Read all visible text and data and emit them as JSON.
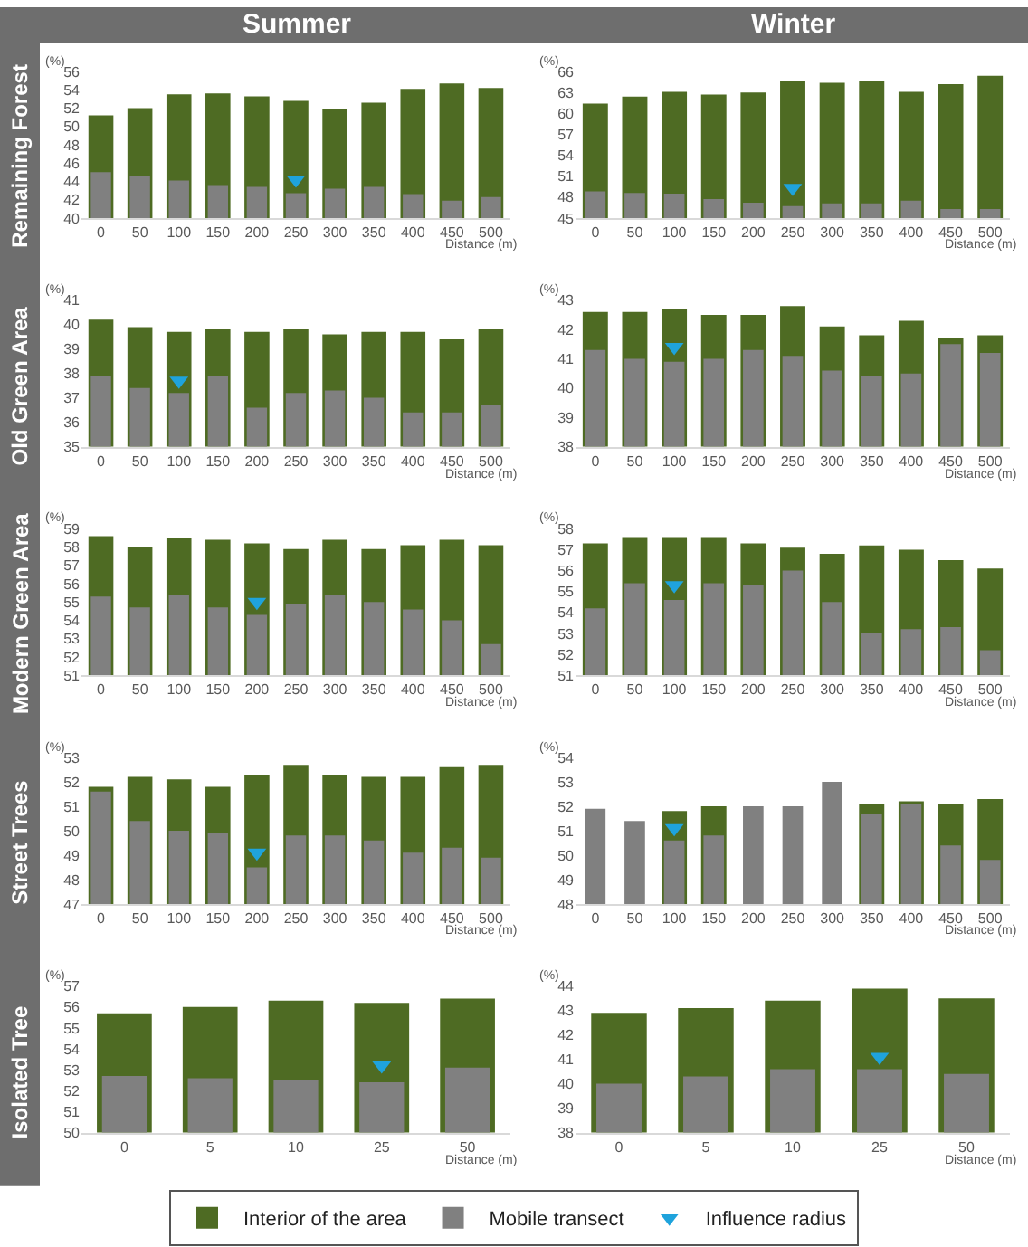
{
  "chart_data": [
    {
      "type": "bar",
      "legend": "bottom",
      "title": "Summer",
      "ylabel": "(%)",
      "xlabel": "Distance (m)",
      "annotations": [
        "Remaining Forest"
      ],
      "categories": [
        "0",
        "50",
        "100",
        "150",
        "200",
        "250",
        "300",
        "350",
        "400",
        "450",
        "500"
      ],
      "ylim": [
        40,
        56
      ],
      "yticks": [
        40,
        42,
        44,
        46,
        48,
        50,
        52,
        54,
        56
      ],
      "series": [
        {
          "name": "Interior of the area",
          "color": "#4e6b23",
          "values": [
            51.2,
            52.0,
            53.5,
            53.6,
            53.3,
            52.8,
            51.9,
            52.6,
            54.1,
            54.7,
            54.2
          ]
        },
        {
          "name": "Mobile transect",
          "color": "#808080",
          "values": [
            45.0,
            44.6,
            44.1,
            43.6,
            43.4,
            42.7,
            43.2,
            43.4,
            42.6,
            41.9,
            42.3
          ]
        },
        {
          "name": "Influence radius",
          "type": "scatter",
          "marker": "triangle",
          "color": "#1fa3dc",
          "x": [
            "250"
          ],
          "values": [
            44.2
          ]
        }
      ]
    },
    {
      "type": "bar",
      "title": "Winter",
      "ylabel": "(%)",
      "xlabel": "Distance (m)",
      "categories": [
        "0",
        "50",
        "100",
        "150",
        "200",
        "250",
        "300",
        "350",
        "400",
        "450",
        "500"
      ],
      "ylim": [
        45,
        66
      ],
      "yticks": [
        45,
        48,
        51,
        54,
        57,
        60,
        63,
        66
      ],
      "series": [
        {
          "color": "#4e6b23",
          "values": [
            61.4,
            62.4,
            63.1,
            62.7,
            63.0,
            64.6,
            64.4,
            64.7,
            63.1,
            64.2,
            65.4
          ]
        },
        {
          "color": "#808080",
          "values": [
            48.8,
            48.6,
            48.5,
            47.7,
            47.2,
            46.7,
            47.1,
            47.1,
            47.5,
            46.3,
            46.3
          ]
        },
        {
          "type": "scatter",
          "marker": "triangle",
          "color": "#1fa3dc",
          "x": [
            "250"
          ],
          "values": [
            49.3
          ]
        }
      ]
    },
    {
      "type": "bar",
      "ylabel": "(%)",
      "xlabel": "Distance (m)",
      "annotations": [
        "Old Green Area"
      ],
      "categories": [
        "0",
        "50",
        "100",
        "150",
        "200",
        "250",
        "300",
        "350",
        "400",
        "450",
        "500"
      ],
      "ylim": [
        35,
        41
      ],
      "yticks": [
        35,
        36,
        37,
        38,
        39,
        40,
        41
      ],
      "series": [
        {
          "color": "#4e6b23",
          "values": [
            40.2,
            39.9,
            39.7,
            39.8,
            39.7,
            39.8,
            39.6,
            39.7,
            39.7,
            39.4,
            39.8
          ]
        },
        {
          "color": "#808080",
          "values": [
            37.9,
            37.4,
            37.2,
            37.9,
            36.6,
            37.2,
            37.3,
            37.0,
            36.4,
            36.4,
            36.7
          ]
        },
        {
          "type": "scatter",
          "marker": "triangle",
          "color": "#1fa3dc",
          "x": [
            "100"
          ],
          "values": [
            37.7
          ]
        }
      ]
    },
    {
      "type": "bar",
      "ylabel": "(%)",
      "xlabel": "Distance (m)",
      "categories": [
        "0",
        "50",
        "100",
        "150",
        "200",
        "250",
        "300",
        "350",
        "400",
        "450",
        "500"
      ],
      "ylim": [
        38,
        43
      ],
      "yticks": [
        38,
        39,
        40,
        41,
        42,
        43
      ],
      "series": [
        {
          "color": "#4e6b23",
          "values": [
            42.6,
            42.6,
            42.7,
            42.5,
            42.5,
            42.8,
            42.1,
            41.8,
            42.3,
            41.7,
            41.8
          ]
        },
        {
          "color": "#808080",
          "values": [
            41.3,
            41.0,
            40.9,
            41.0,
            41.3,
            41.1,
            40.6,
            40.4,
            40.5,
            41.5,
            41.2
          ]
        },
        {
          "type": "scatter",
          "marker": "triangle",
          "color": "#1fa3dc",
          "x": [
            "100"
          ],
          "values": [
            41.4
          ]
        }
      ]
    },
    {
      "type": "bar",
      "ylabel": "(%)",
      "xlabel": "Distance (m)",
      "annotations": [
        "Modern Green Area"
      ],
      "categories": [
        "0",
        "50",
        "100",
        "150",
        "200",
        "250",
        "300",
        "350",
        "400",
        "450",
        "500"
      ],
      "ylim": [
        51,
        59
      ],
      "yticks": [
        51,
        52,
        53,
        54,
        55,
        56,
        57,
        58,
        59
      ],
      "series": [
        {
          "color": "#4e6b23",
          "values": [
            58.6,
            58.0,
            58.5,
            58.4,
            58.2,
            57.9,
            58.4,
            57.9,
            58.1,
            58.4,
            58.1
          ]
        },
        {
          "color": "#808080",
          "values": [
            55.3,
            54.7,
            55.4,
            54.7,
            54.3,
            54.9,
            55.4,
            55.0,
            54.6,
            54.0,
            52.7
          ]
        },
        {
          "type": "scatter",
          "marker": "triangle",
          "color": "#1fa3dc",
          "x": [
            "200"
          ],
          "values": [
            55.0
          ]
        }
      ]
    },
    {
      "type": "bar",
      "ylabel": "(%)",
      "xlabel": "Distance (m)",
      "categories": [
        "0",
        "50",
        "100",
        "150",
        "200",
        "250",
        "300",
        "350",
        "400",
        "450",
        "500"
      ],
      "ylim": [
        51,
        58
      ],
      "yticks": [
        51,
        52,
        53,
        54,
        55,
        56,
        57,
        58
      ],
      "series": [
        {
          "color": "#4e6b23",
          "values": [
            57.3,
            57.6,
            57.6,
            57.6,
            57.3,
            57.1,
            56.8,
            57.2,
            57.0,
            56.5,
            56.1
          ]
        },
        {
          "color": "#808080",
          "values": [
            54.2,
            55.4,
            54.6,
            55.4,
            55.3,
            56.0,
            54.5,
            53.0,
            53.2,
            53.3,
            52.2
          ]
        },
        {
          "type": "scatter",
          "marker": "triangle",
          "color": "#1fa3dc",
          "x": [
            "100"
          ],
          "values": [
            55.3
          ]
        }
      ]
    },
    {
      "type": "bar",
      "ylabel": "(%)",
      "xlabel": "Distance (m)",
      "annotations": [
        "Street Trees"
      ],
      "categories": [
        "0",
        "50",
        "100",
        "150",
        "200",
        "250",
        "300",
        "350",
        "400",
        "450",
        "500"
      ],
      "ylim": [
        47,
        53
      ],
      "yticks": [
        47,
        48,
        49,
        50,
        51,
        52,
        53
      ],
      "series": [
        {
          "color": "#4e6b23",
          "values": [
            51.8,
            52.2,
            52.1,
            51.8,
            52.3,
            52.7,
            52.3,
            52.2,
            52.2,
            52.6,
            52.7
          ]
        },
        {
          "color": "#808080",
          "values": [
            51.6,
            50.4,
            50.0,
            49.9,
            48.5,
            49.8,
            49.8,
            49.6,
            49.1,
            49.3,
            48.9
          ]
        },
        {
          "type": "scatter",
          "marker": "triangle",
          "color": "#1fa3dc",
          "x": [
            "200"
          ],
          "values": [
            49.1
          ]
        }
      ]
    },
    {
      "type": "bar",
      "ylabel": "(%)",
      "xlabel": "Distance (m)",
      "categories": [
        "0",
        "50",
        "100",
        "150",
        "200",
        "250",
        "300",
        "350",
        "400",
        "450",
        "500"
      ],
      "ylim": [
        48,
        54
      ],
      "yticks": [
        48,
        49,
        50,
        51,
        52,
        53,
        54
      ],
      "series": [
        {
          "color": "#4e6b23",
          "values": [
            null,
            null,
            51.8,
            52.0,
            null,
            null,
            null,
            52.1,
            52.2,
            52.1,
            52.3
          ]
        },
        {
          "color": "#808080",
          "values": [
            51.9,
            51.4,
            50.6,
            50.8,
            52.0,
            52.0,
            53.0,
            51.7,
            52.1,
            50.4,
            49.8
          ]
        },
        {
          "type": "scatter",
          "marker": "triangle",
          "color": "#1fa3dc",
          "x": [
            "100"
          ],
          "values": [
            51.1
          ]
        }
      ]
    },
    {
      "type": "bar",
      "ylabel": "(%)",
      "xlabel": "Distance (m)",
      "annotations": [
        "Isolated Tree"
      ],
      "categories": [
        "0",
        "5",
        "10",
        "25",
        "50"
      ],
      "ylim": [
        50,
        57
      ],
      "yticks": [
        50,
        51,
        52,
        53,
        54,
        55,
        56,
        57
      ],
      "series": [
        {
          "color": "#4e6b23",
          "values": [
            55.7,
            56.0,
            56.3,
            56.2,
            56.4
          ]
        },
        {
          "color": "#808080",
          "values": [
            52.7,
            52.6,
            52.5,
            52.4,
            53.1
          ]
        },
        {
          "type": "scatter",
          "marker": "triangle",
          "color": "#1fa3dc",
          "x": [
            "25"
          ],
          "values": [
            53.2
          ]
        }
      ]
    },
    {
      "type": "bar",
      "ylabel": "(%)",
      "xlabel": "Distance (m)",
      "categories": [
        "0",
        "5",
        "10",
        "25",
        "50"
      ],
      "ylim": [
        38,
        44
      ],
      "yticks": [
        38,
        39,
        40,
        41,
        42,
        43,
        44
      ],
      "series": [
        {
          "color": "#4e6b23",
          "values": [
            42.9,
            43.1,
            43.4,
            43.9,
            43.5
          ]
        },
        {
          "color": "#808080",
          "values": [
            40.0,
            40.3,
            40.6,
            40.6,
            40.4
          ]
        },
        {
          "type": "scatter",
          "marker": "triangle",
          "color": "#1fa3dc",
          "x": [
            "25"
          ],
          "values": [
            41.1
          ]
        }
      ]
    }
  ]
}
